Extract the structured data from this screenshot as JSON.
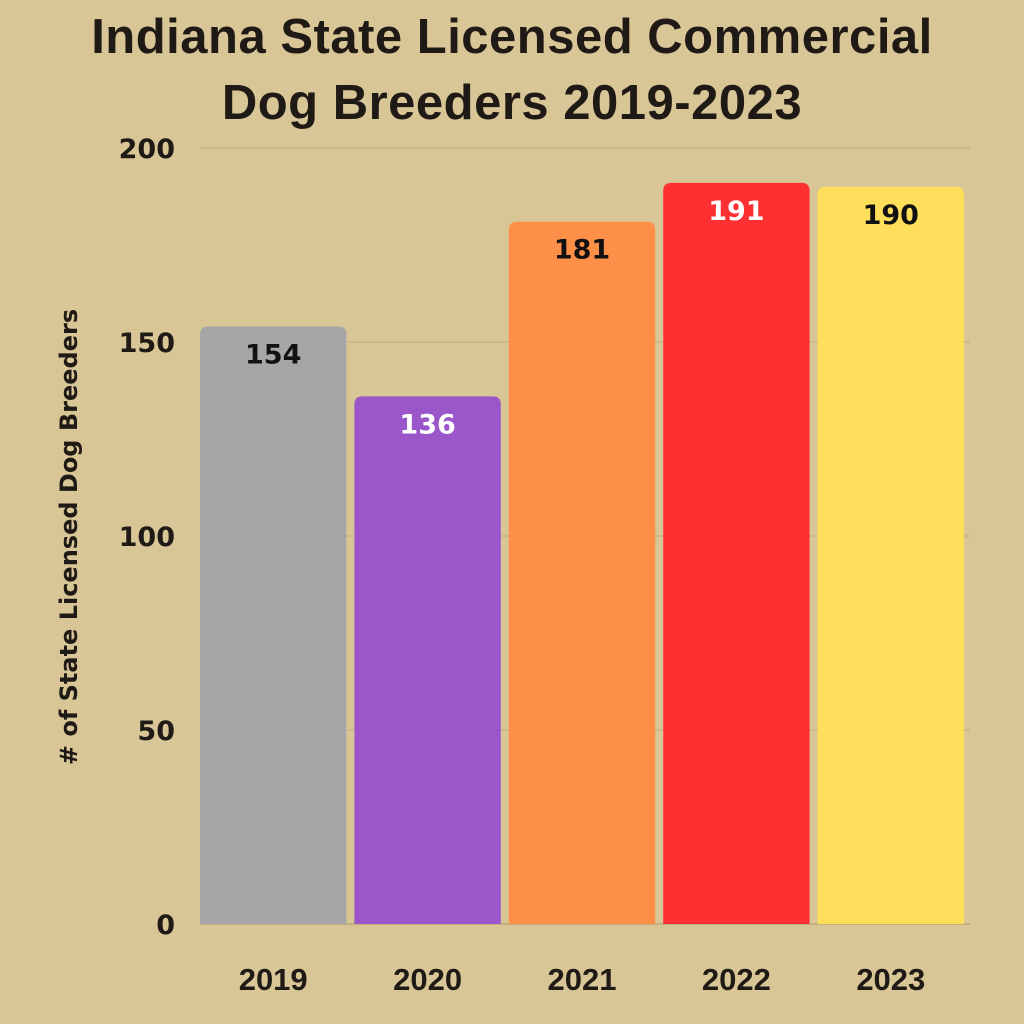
{
  "chart_data": {
    "type": "bar",
    "title_lines": [
      "Indiana State Licensed Commercial",
      "Dog Breeders 2019-2023"
    ],
    "title": "Indiana State Licensed Commercial Dog Breeders 2019-2023",
    "xlabel": "",
    "ylabel": "# of State Licensed Dog Breeders",
    "categories": [
      "2019",
      "2020",
      "2021",
      "2022",
      "2023"
    ],
    "values": [
      154,
      136,
      181,
      191,
      190
    ],
    "data_labels": [
      "154",
      "136",
      "181",
      "191",
      "190"
    ],
    "bar_colors": [
      "#a6a6a6",
      "#9b57c9",
      "#fd8f48",
      "#fe3032",
      "#fede5a"
    ],
    "label_colors": [
      "#111111",
      "#ffffff",
      "#111111",
      "#ffffff",
      "#111111"
    ],
    "ylim": [
      0,
      200
    ],
    "yticks": [
      0,
      50,
      100,
      150,
      200
    ],
    "ytick_labels": [
      "0",
      "50",
      "100",
      "150",
      "200"
    ],
    "grid": true,
    "legend": "none",
    "background_color": "#d9c697",
    "gridline_color": "#c4b182"
  }
}
